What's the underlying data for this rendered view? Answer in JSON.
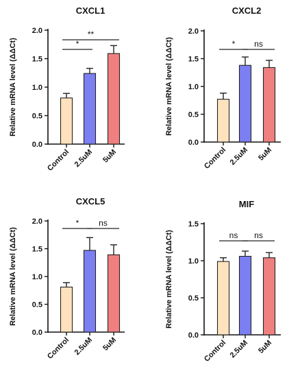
{
  "chart_data": [
    {
      "type": "bar",
      "title": "CXCL1",
      "ylabel": "Relative mRNA level (ΔΔCt)",
      "categories": [
        "Control",
        "2.5uM",
        "5uM"
      ],
      "values": [
        0.81,
        1.24,
        1.59
      ],
      "errors": [
        0.08,
        0.09,
        0.14
      ],
      "ylim": [
        0,
        2.0
      ],
      "yticks": [
        "0.0",
        "0.5",
        "1.0",
        "1.5",
        "2.0"
      ],
      "colors": [
        "#fde2bd",
        "#7b7ff2",
        "#f08080"
      ],
      "significance": [
        {
          "from": 0,
          "to": 1,
          "label": "*"
        },
        {
          "from": 0,
          "to": 2,
          "label": "**"
        }
      ]
    },
    {
      "type": "bar",
      "title": "CXCL2",
      "ylabel": "Relative mRNA level (ΔΔCt)",
      "categories": [
        "Control",
        "2.5uM",
        "5uM"
      ],
      "values": [
        0.77,
        1.38,
        1.34
      ],
      "errors": [
        0.11,
        0.15,
        0.13
      ],
      "ylim": [
        0,
        2.0
      ],
      "yticks": [
        "0.0",
        "0.5",
        "1.0",
        "1.5",
        "2.0"
      ],
      "colors": [
        "#fde2bd",
        "#7b7ff2",
        "#f08080"
      ],
      "significance": [
        {
          "from": 0,
          "to": 1,
          "label": "*"
        },
        {
          "from": 1,
          "to": 2,
          "label": "ns"
        }
      ]
    },
    {
      "type": "bar",
      "title": "CXCL5",
      "ylabel": "Relative mRNA level (ΔΔCt)",
      "categories": [
        "Control",
        "2.5uM",
        "5uM"
      ],
      "values": [
        0.81,
        1.47,
        1.39
      ],
      "errors": [
        0.08,
        0.23,
        0.18
      ],
      "ylim": [
        0,
        2.0
      ],
      "yticks": [
        "0.0",
        "0.5",
        "1.0",
        "1.5",
        "2.0"
      ],
      "colors": [
        "#fde2bd",
        "#7b7ff2",
        "#f08080"
      ],
      "significance": [
        {
          "from": 0,
          "to": 1,
          "label": "*"
        },
        {
          "from": 1,
          "to": 2,
          "label": "ns"
        }
      ]
    },
    {
      "type": "bar",
      "title": "MIF",
      "ylabel": "Relative mRNA level (ΔΔCt)",
      "categories": [
        "Control",
        "2.5uM",
        "5uM"
      ],
      "values": [
        0.99,
        1.06,
        1.04
      ],
      "errors": [
        0.05,
        0.07,
        0.07
      ],
      "ylim": [
        0,
        1.5
      ],
      "yticks": [
        "0.0",
        "0.5",
        "1.0",
        "1.5"
      ],
      "colors": [
        "#fde2bd",
        "#7b7ff2",
        "#f08080"
      ],
      "significance": [
        {
          "from": 0,
          "to": 1,
          "label": "ns"
        },
        {
          "from": 1,
          "to": 2,
          "label": "ns"
        }
      ]
    }
  ]
}
